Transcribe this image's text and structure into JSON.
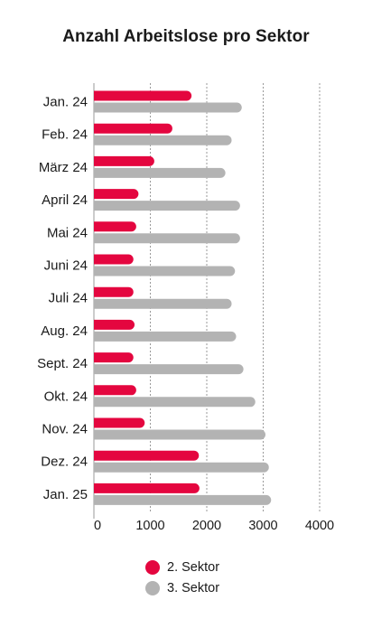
{
  "chart_data": {
    "type": "bar",
    "orientation": "horizontal",
    "title": "Anzahl Arbeitslose pro Sektor",
    "xlabel": "",
    "ylabel": "",
    "categories": [
      "Jan. 24",
      "Feb. 24",
      "März 24",
      "April 24",
      "Mai 24",
      "Juni 24",
      "Juli 24",
      "Aug. 24",
      "Sept. 24",
      "Okt. 24",
      "Nov. 24",
      "Dez. 24",
      "Jan. 25"
    ],
    "series": [
      {
        "name": "2. Sektor",
        "color": "#e4063f",
        "values": [
          1730,
          1390,
          1070,
          790,
          750,
          700,
          700,
          720,
          700,
          750,
          900,
          1860,
          1870
        ]
      },
      {
        "name": "3. Sektor",
        "color": "#b3b3b3",
        "values": [
          2620,
          2440,
          2330,
          2590,
          2590,
          2500,
          2440,
          2520,
          2650,
          2860,
          3040,
          3100,
          3140
        ]
      }
    ],
    "xlim": [
      0,
      4000
    ],
    "xticks": [
      0,
      1000,
      2000,
      3000,
      4000
    ],
    "xtick_labels": [
      "0",
      "1000",
      "2000",
      "3000",
      "4000"
    ],
    "grid": "vertical dashed",
    "legend_position": "bottom"
  }
}
